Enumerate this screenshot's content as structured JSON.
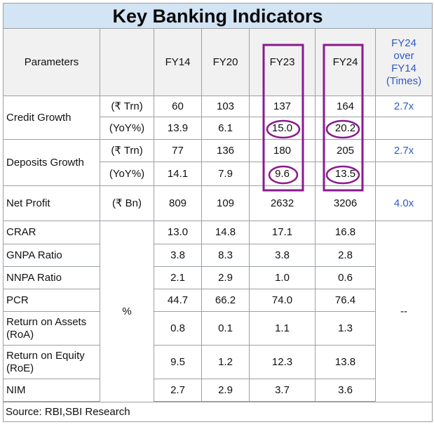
{
  "title": "Key Banking Indicators",
  "headers": {
    "parameters": "Parameters",
    "unit": "",
    "fy14": "FY14",
    "fy20": "FY20",
    "fy23": "FY23",
    "fy24": "FY24",
    "times": "FY24 over FY14 (Times)"
  },
  "rows": {
    "credit": {
      "label": "Credit Growth",
      "trn": {
        "unit": "(₹ Trn)",
        "fy14": "60",
        "fy20": "103",
        "fy23": "137",
        "fy24": "164",
        "times": "2.7x"
      },
      "yoy": {
        "unit": "(YoY%)",
        "fy14": "13.9",
        "fy20": "6.1",
        "fy23": "15.0",
        "fy24": "20.2"
      }
    },
    "deposits": {
      "label": "Deposits Growth",
      "trn": {
        "unit": "(₹ Trn)",
        "fy14": "77",
        "fy20": "136",
        "fy23": "180",
        "fy24": "205",
        "times": "2.7x"
      },
      "yoy": {
        "unit": "(YoY%)",
        "fy14": "14.1",
        "fy20": "7.9",
        "fy23": "9.6",
        "fy24": "13.5"
      }
    },
    "net_profit": {
      "label": "Net Profit",
      "unit": "(₹ Bn)",
      "fy14": "809",
      "fy20": "109",
      "fy23": "2632",
      "fy24": "3206",
      "times": "4.0x"
    },
    "percent_unit": "%",
    "percent_times": "--",
    "crar": {
      "label": "CRAR",
      "fy14": "13.0",
      "fy20": "14.8",
      "fy23": "17.1",
      "fy24": "16.8"
    },
    "gnpa": {
      "label": "GNPA Ratio",
      "fy14": "3.8",
      "fy20": "8.3",
      "fy23": "3.8",
      "fy24": "2.8"
    },
    "nnpa": {
      "label": "NNPA Ratio",
      "fy14": "2.1",
      "fy20": "2.9",
      "fy23": "1.0",
      "fy24": "0.6"
    },
    "pcr": {
      "label": "PCR",
      "fy14": "44.7",
      "fy20": "66.2",
      "fy23": "74.0",
      "fy24": "76.4"
    },
    "roa": {
      "label": "Return on Assets (RoA)",
      "fy14": "0.8",
      "fy20": "0.1",
      "fy23": "1.1",
      "fy24": "1.3"
    },
    "roe": {
      "label": "Return on Equity (RoE)",
      "fy14": "9.5",
      "fy20": "1.2",
      "fy23": "12.3",
      "fy24": "13.8"
    },
    "nim": {
      "label": "NIM",
      "fy14": "2.7",
      "fy20": "2.9",
      "fy23": "3.7",
      "fy24": "3.6"
    }
  },
  "source": "Source: RBI,SBI Research",
  "highlight_color": "#8a1b8f"
}
